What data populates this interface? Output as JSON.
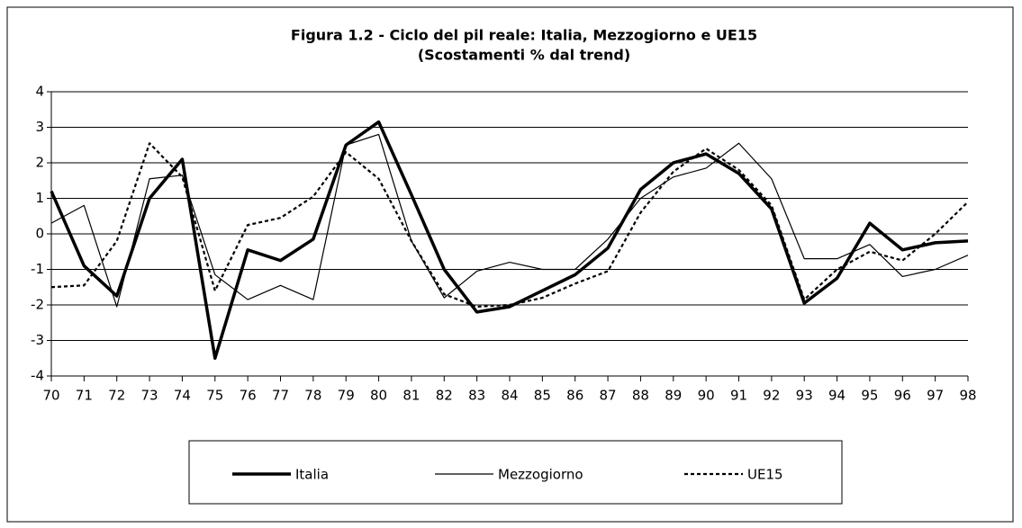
{
  "chart_data": {
    "type": "line",
    "title": "Figura 1.2 - Ciclo del pil reale: Italia, Mezzogiorno e UE15",
    "subtitle": "(Scostamenti % dal trend)",
    "categories": [
      "70",
      "71",
      "72",
      "73",
      "74",
      "75",
      "76",
      "77",
      "78",
      "79",
      "80",
      "81",
      "82",
      "83",
      "84",
      "85",
      "86",
      "87",
      "88",
      "89",
      "90",
      "91",
      "92",
      "93",
      "94",
      "95",
      "96",
      "97",
      "98"
    ],
    "series": [
      {
        "name": "Italia",
        "color": "#000000",
        "width": 3.5,
        "dash": "none",
        "values": [
          1.2,
          -0.9,
          -1.75,
          1.0,
          2.1,
          -3.5,
          -0.45,
          -0.75,
          -0.15,
          2.5,
          3.15,
          1.1,
          -1.0,
          -2.2,
          -2.05,
          -1.6,
          -1.15,
          -0.4,
          1.25,
          2.0,
          2.25,
          1.7,
          0.7,
          -1.95,
          -1.25,
          0.3,
          -0.45,
          -0.25,
          -0.2
        ]
      },
      {
        "name": "Mezzogiorno",
        "color": "#000000",
        "width": 1.2,
        "dash": "none",
        "values": [
          0.3,
          0.8,
          -2.05,
          1.55,
          1.65,
          -1.15,
          -1.85,
          -1.45,
          -1.85,
          2.5,
          2.8,
          -0.2,
          -1.8,
          -1.05,
          -0.8,
          -1.0,
          -1.0,
          -0.15,
          1.0,
          1.6,
          1.85,
          2.55,
          1.55,
          -0.7,
          -0.7,
          -0.3,
          -1.2,
          -1.0,
          -0.6
        ]
      },
      {
        "name": "UE15",
        "color": "#000000",
        "width": 2.2,
        "dash": "4 3",
        "values": [
          -1.5,
          -1.45,
          -0.2,
          2.55,
          1.6,
          -1.6,
          0.25,
          0.45,
          1.05,
          2.3,
          1.55,
          -0.2,
          -1.7,
          -2.05,
          -2.0,
          -1.8,
          -1.4,
          -1.05,
          0.6,
          1.75,
          2.4,
          1.8,
          0.8,
          -1.85,
          -1.0,
          -0.5,
          -0.75,
          0.0,
          0.9
        ]
      }
    ],
    "ylim": [
      -4,
      4
    ],
    "yticks": [
      -4,
      -3,
      -2,
      -1,
      0,
      1,
      2,
      3,
      4
    ],
    "grid": true
  }
}
